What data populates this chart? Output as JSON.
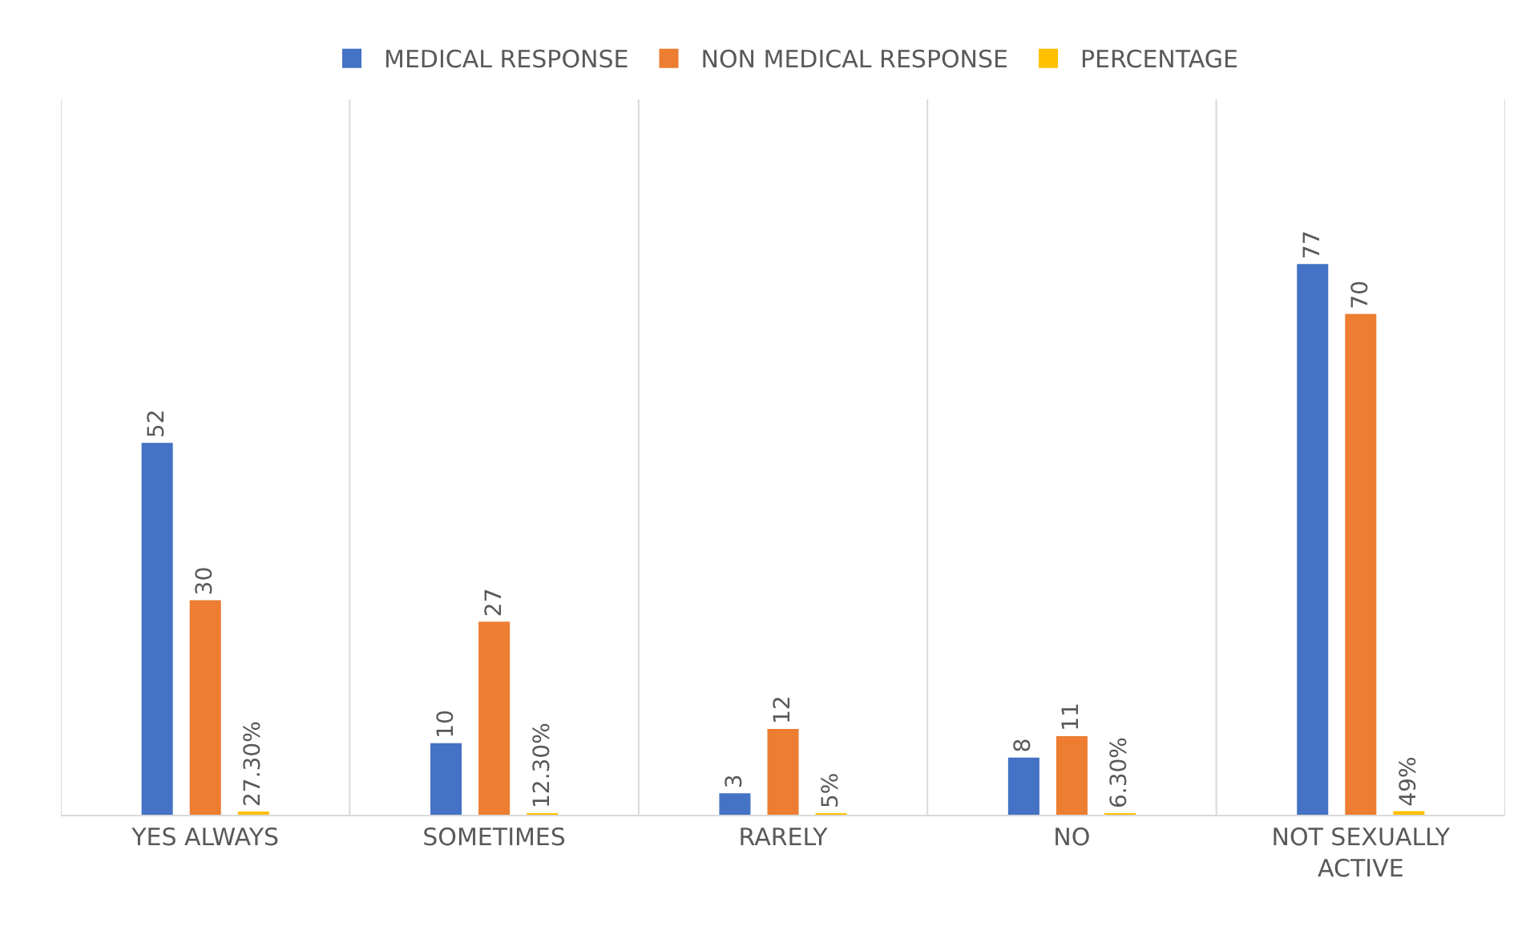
{
  "chart_data": {
    "type": "bar",
    "categories": [
      "YES ALWAYS",
      "SOMETIMES",
      "RARELY",
      "NO",
      "NOT SEXUALLY ACTIVE"
    ],
    "series": [
      {
        "name": "MEDICAL RESPONSE",
        "color": "#4472c4",
        "values": [
          52,
          10,
          3,
          8,
          77
        ]
      },
      {
        "name": "NON MEDICAL RESPONSE",
        "color": "#ed7d31",
        "values": [
          30,
          27,
          12,
          11,
          70
        ]
      },
      {
        "name": "PERCENTAGE",
        "color": "#ffc000",
        "values": [
          0.273,
          0.123,
          0.05,
          0.063,
          0.49
        ],
        "value_labels": [
          "27.30%",
          "12.30%",
          "5%",
          "6.30%",
          "49%"
        ]
      }
    ],
    "data_labels": true,
    "ylim": [
      0,
      100
    ],
    "tick_labels": "x",
    "grid": "x",
    "legend": "top"
  }
}
